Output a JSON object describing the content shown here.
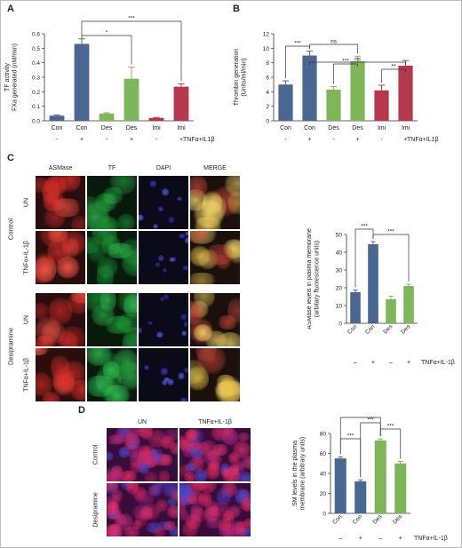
{
  "panels": {
    "A": "A",
    "B": "B",
    "C": "C",
    "D": "D"
  },
  "colors": {
    "con": "#4a6791",
    "des": "#7fb65a",
    "imi": "#b5384d",
    "con_err": "#4a6791",
    "des_err": "#7fb65a",
    "imi_err": "#b5384d"
  },
  "chart_data": [
    {
      "type": "bar",
      "id": "A",
      "ylabel": "TF activity\nFXa generated (nM/min)",
      "ylim": [
        0,
        0.6
      ],
      "yticks": [
        "0.0",
        "0.1",
        "0.2",
        "0.3",
        "0.4",
        "0.5",
        "0.6"
      ],
      "categories": [
        "Con",
        "Con",
        "Des",
        "Des",
        "Imi",
        "Imi"
      ],
      "treatment": [
        "-",
        "+",
        "-",
        "+",
        "-",
        "+"
      ],
      "treatment_label": "TNFα+IL1β",
      "values": [
        0.035,
        0.53,
        0.05,
        0.29,
        0.02,
        0.235
      ],
      "errors": [
        0.005,
        0.035,
        0.005,
        0.08,
        0.003,
        0.02
      ],
      "groups": [
        "con",
        "con",
        "des",
        "des",
        "imi",
        "imi"
      ],
      "annotations": [
        {
          "from": 1,
          "to": 5,
          "text": "***"
        },
        {
          "from": 1,
          "to": 3,
          "text": "*"
        }
      ]
    },
    {
      "type": "bar",
      "id": "B",
      "ylabel": "Thrombin generation\n(Units/ml/min)",
      "ylim": [
        0,
        12
      ],
      "yticks": [
        "0",
        "2",
        "4",
        "6",
        "8",
        "10",
        "12"
      ],
      "categories": [
        "Con",
        "Con",
        "Des",
        "Des",
        "Imi",
        "Imi"
      ],
      "treatment": [
        "-",
        "+",
        "-",
        "+",
        "-",
        "+"
      ],
      "treatment_label": "TNFα+IL1β",
      "values": [
        5.0,
        9.0,
        4.3,
        8.2,
        4.2,
        7.6
      ],
      "errors": [
        0.5,
        0.6,
        0.4,
        0.7,
        0.7,
        0.7
      ],
      "groups": [
        "con",
        "con",
        "des",
        "des",
        "imi",
        "imi"
      ],
      "annotations": [
        {
          "from": 0,
          "to": 1,
          "text": "***"
        },
        {
          "from": 1,
          "to": 5,
          "text": "ns"
        },
        {
          "from": 1,
          "to": 3,
          "text": "ns"
        },
        {
          "from": 2,
          "to": 3,
          "text": "***"
        },
        {
          "from": 4,
          "to": 5,
          "text": "**"
        }
      ]
    },
    {
      "type": "bar",
      "id": "C",
      "ylabel": "ASMase levels in plasma membrane\n(arbitary fluorescence units)",
      "ylim": [
        0,
        50
      ],
      "yticks": [
        "0",
        "10",
        "20",
        "30",
        "40",
        "50"
      ],
      "categories": [
        "Con",
        "Con",
        "Des",
        "Des"
      ],
      "treatment": [
        "–",
        "+",
        "–",
        "+"
      ],
      "treatment_label": "TNFα+IL-1β",
      "values": [
        17.5,
        44.5,
        13.5,
        21.0
      ],
      "errors": [
        1.2,
        1.5,
        1.8,
        1.0
      ],
      "groups": [
        "con",
        "con",
        "des",
        "des"
      ],
      "annotations": [
        {
          "from": 0,
          "to": 1,
          "text": "***"
        },
        {
          "from": 1,
          "to": 3,
          "text": "***"
        }
      ]
    },
    {
      "type": "bar",
      "id": "D",
      "ylabel": "SM levels in the plasma\nmembrane (arbitrary units)",
      "ylim": [
        0,
        80
      ],
      "yticks": [
        "0",
        "20",
        "40",
        "60",
        "80"
      ],
      "categories": [
        "Con",
        "Con",
        "Des",
        "Des"
      ],
      "treatment": [
        "–",
        "+",
        "–",
        "+"
      ],
      "treatment_label": "TNFα+IL-1β",
      "values": [
        55,
        32,
        73,
        50
      ],
      "errors": [
        1.5,
        1.5,
        1.5,
        2.0
      ],
      "groups": [
        "con",
        "con",
        "des",
        "des"
      ],
      "annotations": [
        {
          "from": 0,
          "to": 1,
          "text": "***"
        },
        {
          "from": 2,
          "to": 3,
          "text": "***"
        },
        {
          "from": 1,
          "to": 2,
          "text": "***"
        },
        {
          "from": 0,
          "to": 2,
          "text": "***"
        }
      ]
    }
  ],
  "micrograph_C": {
    "columns": [
      "ASMase",
      "TF",
      "DAPI",
      "MERGE"
    ],
    "row_labels": [
      "UN",
      "TNFα+IL-1β",
      "UN",
      "TNFα+IL-1β"
    ],
    "group_labels": [
      "Control",
      "Desipramine"
    ]
  },
  "micrograph_D": {
    "columns": [
      "UN",
      "TNFα+IL-1β"
    ],
    "group_labels": [
      "Control",
      "Desipramine"
    ]
  }
}
